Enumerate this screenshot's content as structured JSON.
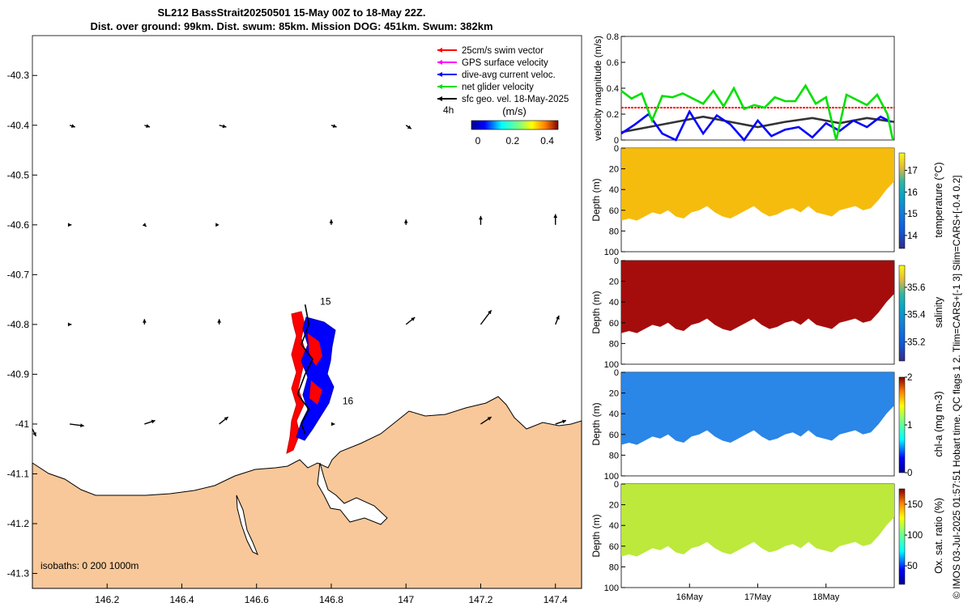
{
  "title": {
    "line1": "SL212 BassStrait20250501 15-May 00Z to 18-May 22Z.",
    "line2": "Dist. over ground: 99km. Dist. swum: 85km. Mission DOG: 451km. Swum: 382km"
  },
  "side_note": "© IMOS 03-Jul-2025 01:57:51 Hobart time. QC flags 1  2. Tlim=CARS+[-1 3] Slim=CARS+[-0.4 0.2]",
  "colors": {
    "land": "#f8c89a",
    "red": "#ff0000",
    "magenta": "#ff00ff",
    "blue": "#0000ff",
    "green": "#00e000",
    "black": "#000000",
    "temp_fill": "#f6b800",
    "sal_fill": "#a00000",
    "chl_fill": "#1f7fe6",
    "ox_fill": "#b8e830"
  },
  "chart_data": [
    {
      "id": "map",
      "type": "scatter",
      "title": "",
      "xlabel": "",
      "ylabel": "",
      "xlim": [
        146.0,
        147.47
      ],
      "ylim": [
        -41.33,
        -40.22
      ],
      "xticks": [
        "146.2",
        "146.4",
        "146.6",
        "146.8",
        "147",
        "147.2",
        "147.4"
      ],
      "xtick_values": [
        146.2,
        146.4,
        146.6,
        146.8,
        147.0,
        147.2,
        147.4
      ],
      "yticks": [
        "-40.3",
        "-40.4",
        "-40.5",
        "-40.6",
        "-40.7",
        "-40.8",
        "-40.9",
        "-41",
        "-41.1",
        "-41.2",
        "-41.3"
      ],
      "ytick_values": [
        -40.3,
        -40.4,
        -40.5,
        -40.6,
        -40.7,
        -40.8,
        -40.9,
        -41.0,
        -41.1,
        -41.2,
        -41.3
      ],
      "legend": [
        {
          "label": "25cm/s swim vector",
          "color": "#ff0000"
        },
        {
          "label": "GPS surface velocity",
          "color": "#ff00ff"
        },
        {
          "label": "dive-avg current veloc.",
          "color": "#0000ff"
        },
        {
          "label": "net glider velocity",
          "color": "#00e000"
        },
        {
          "label": "sfc geo. vel. 18-May-2025",
          "color": "#000000"
        }
      ],
      "legend_position": "top-right",
      "colorbar": {
        "label": "(m/s)",
        "ticks": [
          "0",
          "0.2",
          "0.4"
        ],
        "tick_values": [
          0,
          0.2,
          0.4
        ],
        "range": [
          0,
          0.5
        ],
        "time_label": "4h"
      },
      "day_labels": [
        {
          "text": "15",
          "lon": 146.77,
          "lat": -40.76
        },
        {
          "text": "16",
          "lon": 146.83,
          "lat": -40.96
        }
      ],
      "track": [
        [
          146.73,
          -40.76
        ],
        [
          146.74,
          -40.8
        ],
        [
          146.72,
          -40.84
        ],
        [
          146.75,
          -40.87
        ],
        [
          146.73,
          -40.9
        ],
        [
          146.71,
          -40.94
        ],
        [
          146.74,
          -40.97
        ],
        [
          146.72,
          -41.0
        ],
        [
          146.73,
          -41.02
        ]
      ],
      "geo_vectors": [
        {
          "lon": 146.0,
          "lat": -41.01,
          "u": 0.02,
          "v": -0.04
        },
        {
          "lon": 146.1,
          "lat": -41.0,
          "u": 0.08,
          "v": -0.01
        },
        {
          "lon": 146.3,
          "lat": -41.0,
          "u": 0.06,
          "v": 0.02
        },
        {
          "lon": 146.5,
          "lat": -41.0,
          "u": 0.05,
          "v": 0.04
        },
        {
          "lon": 146.8,
          "lat": -41.0,
          "u": 0.02,
          "v": 0.0
        },
        {
          "lon": 147.2,
          "lat": -41.0,
          "u": 0.06,
          "v": 0.04
        },
        {
          "lon": 147.4,
          "lat": -41.0,
          "u": 0.06,
          "v": 0.02
        },
        {
          "lon": 146.1,
          "lat": -40.8,
          "u": 0.01,
          "v": 0.0
        },
        {
          "lon": 146.3,
          "lat": -40.8,
          "u": 0.0,
          "v": 0.03
        },
        {
          "lon": 146.5,
          "lat": -40.8,
          "u": 0.0,
          "v": 0.03
        },
        {
          "lon": 147.0,
          "lat": -40.8,
          "u": 0.05,
          "v": 0.04
        },
        {
          "lon": 147.2,
          "lat": -40.8,
          "u": 0.06,
          "v": 0.08
        },
        {
          "lon": 147.4,
          "lat": -40.8,
          "u": 0.02,
          "v": 0.05
        },
        {
          "lon": 146.1,
          "lat": -40.6,
          "u": 0.01,
          "v": 0.0
        },
        {
          "lon": 146.3,
          "lat": -40.6,
          "u": 0.01,
          "v": -0.01
        },
        {
          "lon": 146.5,
          "lat": -40.6,
          "u": 0.0,
          "v": 0.0
        },
        {
          "lon": 146.8,
          "lat": -40.6,
          "u": 0.0,
          "v": 0.03
        },
        {
          "lon": 147.0,
          "lat": -40.6,
          "u": 0.0,
          "v": 0.03
        },
        {
          "lon": 147.2,
          "lat": -40.6,
          "u": 0.0,
          "v": 0.05
        },
        {
          "lon": 147.4,
          "lat": -40.6,
          "u": 0.0,
          "v": 0.06
        },
        {
          "lon": 146.1,
          "lat": -40.4,
          "u": 0.03,
          "v": -0.01
        },
        {
          "lon": 146.3,
          "lat": -40.4,
          "u": 0.03,
          "v": -0.01
        },
        {
          "lon": 146.5,
          "lat": -40.4,
          "u": 0.04,
          "v": -0.01
        },
        {
          "lon": 146.8,
          "lat": -40.4,
          "u": 0.03,
          "v": -0.01
        },
        {
          "lon": 147.0,
          "lat": -40.4,
          "u": 0.03,
          "v": -0.02
        }
      ],
      "isobaths_label": "isobaths: 0   200  1000m"
    },
    {
      "id": "velocity",
      "type": "line",
      "title": "",
      "xlabel": "",
      "ylabel": "velocity magnitude (m/s)",
      "xlim": [
        0,
        4.0
      ],
      "ylim": [
        0,
        0.8
      ],
      "yticks": [
        "0",
        "0.2",
        "0.4",
        "0.6",
        "0.8"
      ],
      "ytick_values": [
        0,
        0.2,
        0.4,
        0.6,
        0.8
      ],
      "series": [
        {
          "name": "25cm/s swim vector",
          "color": "#ff0000",
          "x": [
            0,
            4.0
          ],
          "values": [
            0.25,
            0.25
          ]
        },
        {
          "name": "sfc geo. vel.",
          "color": "#333333",
          "x": [
            0,
            0.4,
            0.8,
            1.2,
            1.6,
            2.0,
            2.4,
            2.8,
            3.2,
            3.6,
            4.0
          ],
          "values": [
            0.06,
            0.1,
            0.14,
            0.18,
            0.14,
            0.1,
            0.14,
            0.17,
            0.13,
            0.17,
            0.14
          ]
        },
        {
          "name": "dive-avg current veloc.",
          "color": "#0000ff",
          "x": [
            0,
            0.2,
            0.4,
            0.6,
            0.8,
            1.0,
            1.2,
            1.4,
            1.6,
            1.8,
            2.0,
            2.2,
            2.4,
            2.6,
            2.8,
            3.0,
            3.2,
            3.4,
            3.6,
            3.8,
            3.95
          ],
          "values": [
            0.05,
            0.12,
            0.2,
            0.05,
            0.0,
            0.22,
            0.05,
            0.19,
            0.12,
            0.0,
            0.15,
            0.03,
            0.08,
            0.1,
            0.02,
            0.13,
            0.07,
            0.15,
            0.1,
            0.18,
            0.14
          ]
        },
        {
          "name": "net glider velocity",
          "color": "#00e000",
          "x": [
            0,
            0.15,
            0.3,
            0.45,
            0.6,
            0.75,
            0.9,
            1.05,
            1.2,
            1.35,
            1.5,
            1.65,
            1.8,
            1.95,
            2.1,
            2.25,
            2.4,
            2.55,
            2.7,
            2.85,
            3.0,
            3.15,
            3.3,
            3.45,
            3.6,
            3.75,
            3.9,
            3.98
          ],
          "values": [
            0.38,
            0.32,
            0.36,
            0.15,
            0.34,
            0.33,
            0.36,
            0.32,
            0.28,
            0.38,
            0.26,
            0.4,
            0.24,
            0.27,
            0.25,
            0.33,
            0.3,
            0.3,
            0.42,
            0.28,
            0.33,
            0.0,
            0.35,
            0.31,
            0.27,
            0.35,
            0.2,
            0.0
          ]
        }
      ]
    },
    {
      "id": "temperature",
      "type": "heatmap",
      "ylabel": "Depth (m)",
      "ylim": [
        100,
        0
      ],
      "yticks": [
        "0",
        "20",
        "40",
        "60",
        "80",
        "100"
      ],
      "ytick_values": [
        0,
        20,
        40,
        60,
        80,
        100
      ],
      "colorbar": {
        "label": "temperature (°C)",
        "ticks": [
          "14",
          "15",
          "16",
          "17"
        ],
        "tick_values": [
          14,
          15,
          16,
          17
        ],
        "range": [
          13.4,
          17.8
        ]
      },
      "typical_value": 16.8
    },
    {
      "id": "salinity",
      "type": "heatmap",
      "ylabel": "Depth (m)",
      "ylim": [
        100,
        0
      ],
      "yticks": [
        "0",
        "20",
        "40",
        "60",
        "80",
        "100"
      ],
      "ytick_values": [
        0,
        20,
        40,
        60,
        80,
        100
      ],
      "colorbar": {
        "label": "salinity",
        "ticks": [
          "35.2",
          "35.4",
          "35.6"
        ],
        "tick_values": [
          35.2,
          35.4,
          35.6
        ],
        "range": [
          35.06,
          35.76
        ]
      },
      "typical_value": 35.76
    },
    {
      "id": "chl",
      "type": "heatmap",
      "ylabel": "Depth (m)",
      "ylim": [
        100,
        0
      ],
      "yticks": [
        "0",
        "20",
        "40",
        "60",
        "80",
        "100"
      ],
      "ytick_values": [
        0,
        20,
        40,
        60,
        80,
        100
      ],
      "colorbar": {
        "label": "chl-a (mg m-3)",
        "ticks": [
          "0",
          "1",
          "2"
        ],
        "tick_values": [
          0,
          1,
          2
        ],
        "range": [
          0,
          2
        ]
      },
      "typical_value": 0.55
    },
    {
      "id": "oxygen",
      "type": "heatmap",
      "ylabel": "Depth (m)",
      "ylim": [
        100,
        0
      ],
      "yticks": [
        "0",
        "20",
        "40",
        "60",
        "80",
        "100"
      ],
      "ytick_values": [
        0,
        20,
        40,
        60,
        80,
        100
      ],
      "xticks": [
        "16May",
        "17May",
        "18May"
      ],
      "xtick_values": [
        1,
        2,
        3
      ],
      "xlim": [
        0,
        4.0
      ],
      "colorbar": {
        "label": "Ox. sat. ratio (%)",
        "ticks": [
          "50",
          "100",
          "150"
        ],
        "tick_values": [
          50,
          100,
          150
        ],
        "range": [
          20,
          175
        ]
      },
      "typical_value": 120
    }
  ],
  "section_profile_depth": [
    70,
    68,
    70,
    66,
    62,
    64,
    60,
    66,
    68,
    62,
    60,
    56,
    62,
    66,
    68,
    64,
    60,
    56,
    62,
    66,
    64,
    60,
    58,
    62,
    56,
    62,
    64,
    66,
    60,
    58,
    56,
    60,
    58,
    50,
    40,
    32
  ]
}
